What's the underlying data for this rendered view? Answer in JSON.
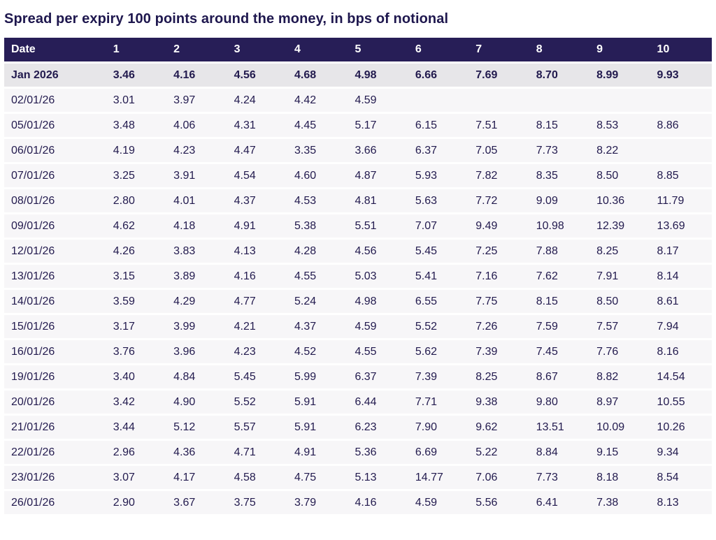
{
  "title": "Spread per expiry 100 points around the money, in bps of notional",
  "colors": {
    "header_bg": "#271e57",
    "header_text": "#ffffff",
    "row_bg": "#f7f6f8",
    "highlight_row_bg": "#e7e6e9",
    "text": "#221a4e",
    "title_text": "#1e174e",
    "page_bg": "#ffffff"
  },
  "chart_data": {
    "type": "table",
    "title": "Spread per expiry 100 points around the money, in bps of notional",
    "unit": "bps of notional",
    "columns": [
      "Date",
      "1",
      "2",
      "3",
      "4",
      "5",
      "6",
      "7",
      "8",
      "9",
      "10"
    ],
    "rows": [
      {
        "date": "Jan 2026",
        "highlight": true,
        "values": [
          "3.46",
          "4.16",
          "4.56",
          "4.68",
          "4.98",
          "6.66",
          "7.69",
          "8.70",
          "8.99",
          "9.93"
        ]
      },
      {
        "date": "02/01/26",
        "highlight": false,
        "values": [
          "3.01",
          "3.97",
          "4.24",
          "4.42",
          "4.59",
          "",
          "",
          "",
          "",
          ""
        ]
      },
      {
        "date": "05/01/26",
        "highlight": false,
        "values": [
          "3.48",
          "4.06",
          "4.31",
          "4.45",
          "5.17",
          "6.15",
          "7.51",
          "8.15",
          "8.53",
          "8.86"
        ]
      },
      {
        "date": "06/01/26",
        "highlight": false,
        "values": [
          "4.19",
          "4.23",
          "4.47",
          "3.35",
          "3.66",
          "6.37",
          "7.05",
          "7.73",
          "8.22",
          ""
        ]
      },
      {
        "date": "07/01/26",
        "highlight": false,
        "values": [
          "3.25",
          "3.91",
          "4.54",
          "4.60",
          "4.87",
          "5.93",
          "7.82",
          "8.35",
          "8.50",
          "8.85"
        ]
      },
      {
        "date": "08/01/26",
        "highlight": false,
        "values": [
          "2.80",
          "4.01",
          "4.37",
          "4.53",
          "4.81",
          "5.63",
          "7.72",
          "9.09",
          "10.36",
          "11.79"
        ]
      },
      {
        "date": "09/01/26",
        "highlight": false,
        "values": [
          "4.62",
          "4.18",
          "4.91",
          "5.38",
          "5.51",
          "7.07",
          "9.49",
          "10.98",
          "12.39",
          "13.69"
        ]
      },
      {
        "date": "12/01/26",
        "highlight": false,
        "values": [
          "4.26",
          "3.83",
          "4.13",
          "4.28",
          "4.56",
          "5.45",
          "7.25",
          "7.88",
          "8.25",
          "8.17"
        ]
      },
      {
        "date": "13/01/26",
        "highlight": false,
        "values": [
          "3.15",
          "3.89",
          "4.16",
          "4.55",
          "5.03",
          "5.41",
          "7.16",
          "7.62",
          "7.91",
          "8.14"
        ]
      },
      {
        "date": "14/01/26",
        "highlight": false,
        "values": [
          "3.59",
          "4.29",
          "4.77",
          "5.24",
          "4.98",
          "6.55",
          "7.75",
          "8.15",
          "8.50",
          "8.61"
        ]
      },
      {
        "date": "15/01/26",
        "highlight": false,
        "values": [
          "3.17",
          "3.99",
          "4.21",
          "4.37",
          "4.59",
          "5.52",
          "7.26",
          "7.59",
          "7.57",
          "7.94"
        ]
      },
      {
        "date": "16/01/26",
        "highlight": false,
        "values": [
          "3.76",
          "3.96",
          "4.23",
          "4.52",
          "4.55",
          "5.62",
          "7.39",
          "7.45",
          "7.76",
          "8.16"
        ]
      },
      {
        "date": "19/01/26",
        "highlight": false,
        "values": [
          "3.40",
          "4.84",
          "5.45",
          "5.99",
          "6.37",
          "7.39",
          "8.25",
          "8.67",
          "8.82",
          "14.54"
        ]
      },
      {
        "date": "20/01/26",
        "highlight": false,
        "values": [
          "3.42",
          "4.90",
          "5.52",
          "5.91",
          "6.44",
          "7.71",
          "9.38",
          "9.80",
          "8.97",
          "10.55"
        ]
      },
      {
        "date": "21/01/26",
        "highlight": false,
        "values": [
          "3.44",
          "5.12",
          "5.57",
          "5.91",
          "6.23",
          "7.90",
          "9.62",
          "13.51",
          "10.09",
          "10.26"
        ]
      },
      {
        "date": "22/01/26",
        "highlight": false,
        "values": [
          "2.96",
          "4.36",
          "4.71",
          "4.91",
          "5.36",
          "6.69",
          "5.22",
          "8.84",
          "9.15",
          "9.34"
        ]
      },
      {
        "date": "23/01/26",
        "highlight": false,
        "values": [
          "3.07",
          "4.17",
          "4.58",
          "4.75",
          "5.13",
          "14.77",
          "7.06",
          "7.73",
          "8.18",
          "8.54"
        ]
      },
      {
        "date": "26/01/26",
        "highlight": false,
        "values": [
          "2.90",
          "3.67",
          "3.75",
          "3.79",
          "4.16",
          "4.59",
          "5.56",
          "6.41",
          "7.38",
          "8.13"
        ]
      }
    ]
  }
}
